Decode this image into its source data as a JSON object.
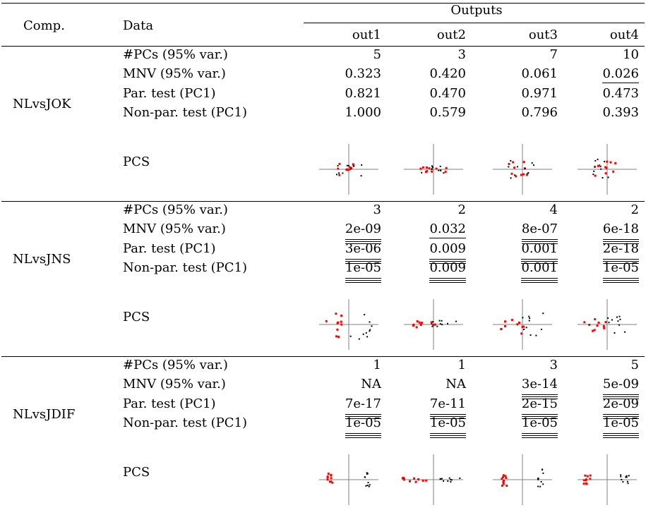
{
  "header": {
    "comp": "Comp.",
    "data": "Data",
    "outputs": "Outputs",
    "cols": [
      "out1",
      "out2",
      "out3",
      "out4"
    ]
  },
  "row_labels": [
    "#PCs (95% var.)",
    "MNV (95% var.)",
    "Par. test (PC1)",
    "Non-par. test (PC1)",
    "PCS"
  ],
  "groups": [
    {
      "comp": "NLvsJOK",
      "rows": [
        {
          "values": [
            "5",
            "3",
            "7",
            "10"
          ],
          "underline": [
            0,
            0,
            0,
            0
          ]
        },
        {
          "values": [
            "0.323",
            "0.420",
            "0.061",
            "0.026"
          ],
          "underline": [
            0,
            0,
            0,
            1
          ]
        },
        {
          "values": [
            "0.821",
            "0.470",
            "0.971",
            "0.473"
          ],
          "underline": [
            0,
            0,
            0,
            0
          ]
        },
        {
          "values": [
            "1.000",
            "0.579",
            "0.796",
            "0.393"
          ],
          "underline": [
            0,
            0,
            0,
            0
          ]
        }
      ]
    },
    {
      "comp": "NLvsJNS",
      "rows": [
        {
          "values": [
            "3",
            "2",
            "4",
            "2"
          ],
          "underline": [
            0,
            0,
            0,
            0
          ]
        },
        {
          "values": [
            "2e-09",
            "0.032",
            "8e-07",
            "6e-18"
          ],
          "underline": [
            3,
            1,
            3,
            3
          ]
        },
        {
          "values": [
            "3e-06",
            "0.009",
            "0.001",
            "2e-18"
          ],
          "underline": [
            3,
            3,
            3,
            3
          ]
        },
        {
          "values": [
            "1e-05",
            "0.009",
            "0.001",
            "1e-05"
          ],
          "underline": [
            3,
            3,
            3,
            3
          ]
        }
      ]
    },
    {
      "comp": "NLvsJDIF",
      "rows": [
        {
          "values": [
            "1",
            "1",
            "3",
            "5"
          ],
          "underline": [
            0,
            0,
            0,
            0
          ]
        },
        {
          "values": [
            "NA",
            "NA",
            "3e-14",
            "5e-09"
          ],
          "underline": [
            0,
            0,
            3,
            3
          ]
        },
        {
          "values": [
            "7e-17",
            "7e-11",
            "2e-15",
            "2e-09"
          ],
          "underline": [
            3,
            3,
            3,
            3
          ]
        },
        {
          "values": [
            "1e-05",
            "1e-05",
            "1e-05",
            "1e-05"
          ],
          "underline": [
            3,
            3,
            3,
            3
          ]
        }
      ]
    }
  ],
  "colors": {
    "group_a": "#ff0000",
    "group_b": "#000000",
    "axes": "#808080"
  }
}
